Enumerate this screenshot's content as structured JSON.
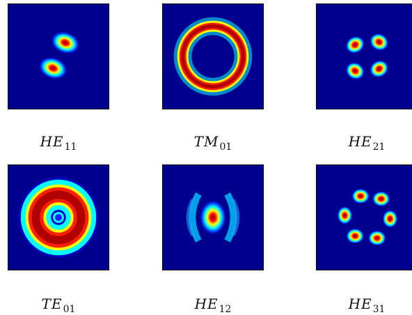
{
  "modes": [
    {
      "main": "HE",
      "sub": "11"
    },
    {
      "main": "TM",
      "sub": "01"
    },
    {
      "main": "HE",
      "sub": "21"
    },
    {
      "main": "TE",
      "sub": "01"
    },
    {
      "main": "HE",
      "sub": "12"
    },
    {
      "main": "HE",
      "sub": "31"
    }
  ],
  "colors": {
    "background": "#00008f",
    "low": "#0000ff",
    "mid": "#00ffff",
    "high": "#ffff00",
    "peak": "#8b0000"
  }
}
